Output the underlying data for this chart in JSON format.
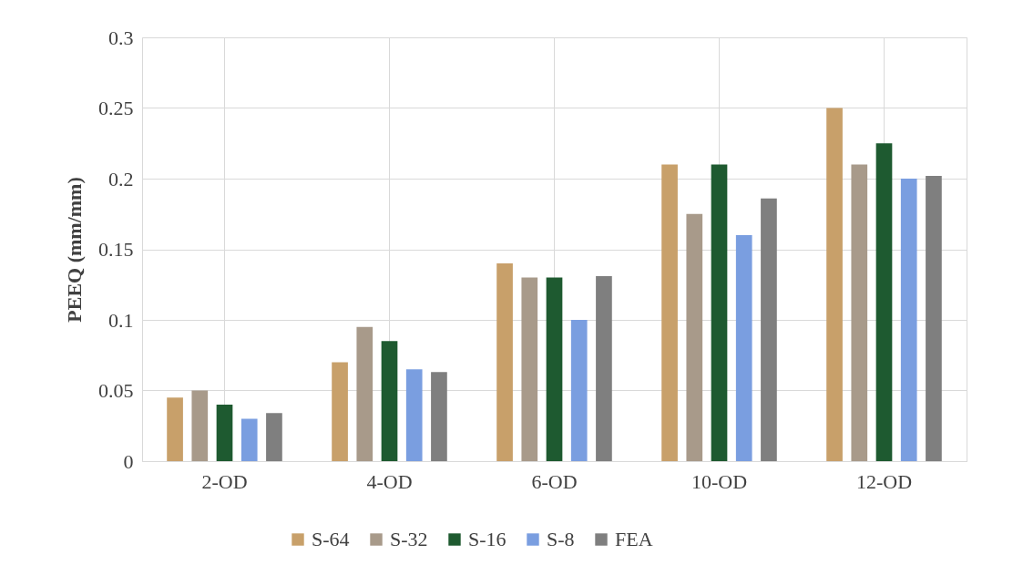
{
  "chart_data": {
    "type": "bar",
    "ylabel": "PEEQ (mm/mm)",
    "categories": [
      "2-OD",
      "4-OD",
      "6-OD",
      "10-OD",
      "12-OD"
    ],
    "series": [
      {
        "name": "S-64",
        "color": "#c8a06a",
        "values": [
          0.045,
          0.07,
          0.14,
          0.21,
          0.25
        ]
      },
      {
        "name": "S-32",
        "color": "#a89a8a",
        "values": [
          0.05,
          0.095,
          0.13,
          0.175,
          0.21
        ]
      },
      {
        "name": "S-16",
        "color": "#1e5a30",
        "values": [
          0.04,
          0.085,
          0.13,
          0.21,
          0.225
        ]
      },
      {
        "name": "S-8",
        "color": "#7a9ee0",
        "values": [
          0.03,
          0.065,
          0.1,
          0.16,
          0.2
        ]
      },
      {
        "name": "FEA",
        "color": "#7f7f7f",
        "values": [
          0.034,
          0.063,
          0.131,
          0.186,
          0.202
        ]
      }
    ],
    "ylim": [
      0,
      0.3
    ],
    "yticks": [
      0,
      0.05,
      0.1,
      0.15,
      0.2,
      0.25,
      0.3
    ],
    "grid": true,
    "legend": "bottom"
  }
}
